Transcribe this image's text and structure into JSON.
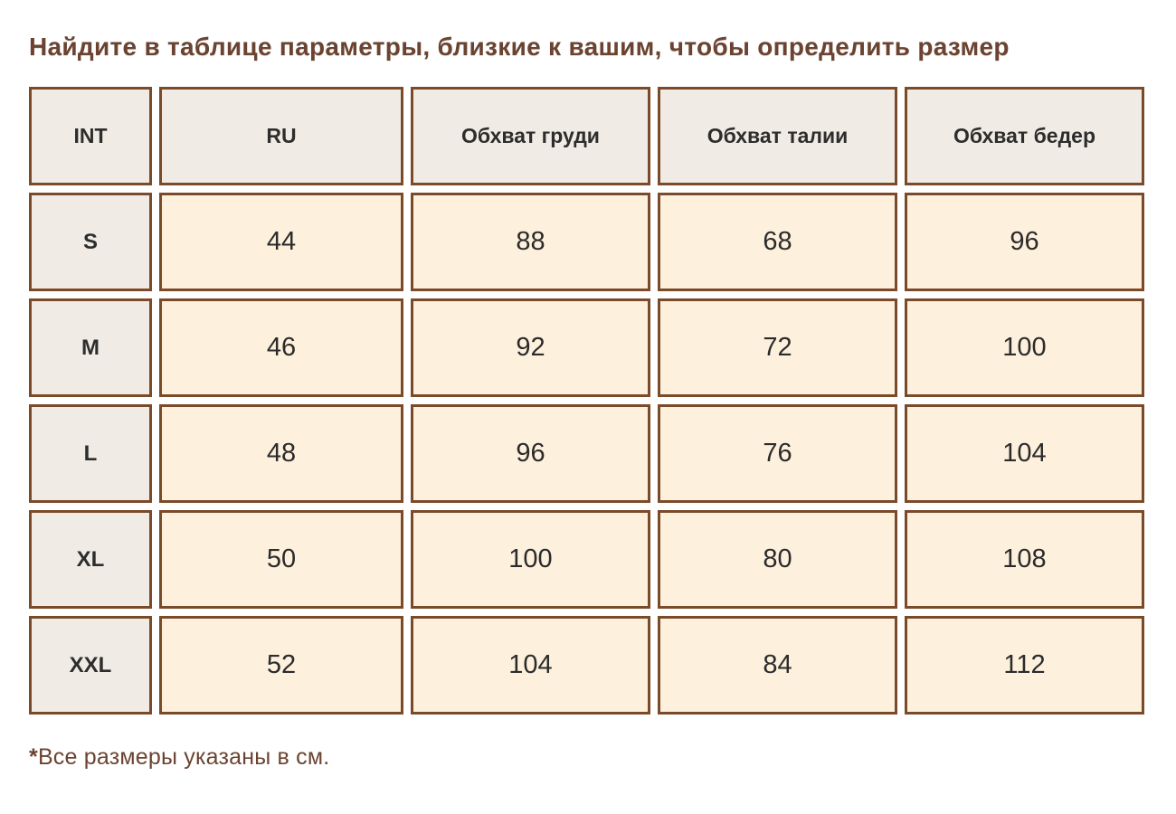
{
  "title": "Найдите в таблице параметры, близкие к вашим, чтобы определить размер",
  "table": {
    "columns": [
      "INT",
      "RU",
      "Обхват груди",
      "Обхват талии",
      "Обхват бедер"
    ],
    "rows": [
      [
        "S",
        "44",
        "88",
        "68",
        "96"
      ],
      [
        "M",
        "46",
        "92",
        "72",
        "100"
      ],
      [
        "L",
        "48",
        "96",
        "76",
        "104"
      ],
      [
        "XL",
        "50",
        "100",
        "80",
        "108"
      ],
      [
        "XXL",
        "52",
        "104",
        "84",
        "112"
      ]
    ]
  },
  "footnote": {
    "marker": "*",
    "text": "Все размеры указаны в см."
  },
  "colors": {
    "title_brown": "#6b4330",
    "border_brown": "#7b4a29",
    "header_beige": "#f0ece5",
    "cell_cream": "#fdf0dc",
    "text_dark": "#2d2d2d",
    "background": "#ffffff"
  }
}
